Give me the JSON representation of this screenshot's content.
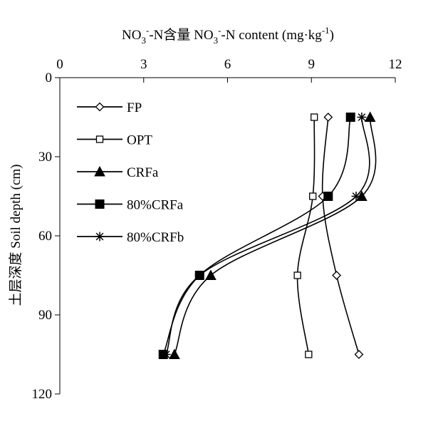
{
  "chart_data": {
    "type": "line",
    "title_parts": {
      "a": "NO",
      "b": "3",
      "c": "-",
      "d": "-N含量 NO",
      "e": "3",
      "f": "-",
      "g": "-N content (mg·kg",
      "h": "-1",
      "i": ")"
    },
    "ylabel": "土层深度 Soil depth (cm)",
    "x_axis": {
      "min": 0,
      "max": 12,
      "ticks": [
        0,
        3,
        6,
        9,
        12
      ],
      "tick_labels": [
        "0",
        "3",
        "6",
        "9",
        "12"
      ],
      "position": "top"
    },
    "y_axis": {
      "min": 0,
      "max": 120,
      "reversed": true,
      "ticks": [
        0,
        30,
        60,
        90,
        120
      ],
      "tick_labels": [
        "0",
        "30",
        "60",
        "90",
        "120"
      ]
    },
    "depths": [
      15,
      45,
      75,
      105
    ],
    "series": [
      {
        "name": "FP",
        "marker": "diamond-open",
        "values": [
          9.6,
          9.4,
          9.9,
          10.7
        ]
      },
      {
        "name": "OPT",
        "marker": "square-open",
        "values": [
          9.1,
          9.05,
          8.5,
          8.9
        ]
      },
      {
        "name": "CRFa",
        "marker": "triangle-filled",
        "values": [
          11.1,
          10.8,
          5.4,
          4.1
        ]
      },
      {
        "name": "80%CRFa",
        "marker": "square-filled",
        "values": [
          10.4,
          9.6,
          5.0,
          3.7
        ]
      },
      {
        "name": "80%CRFb",
        "marker": "star",
        "values": [
          10.8,
          10.6,
          5.0,
          3.8
        ]
      }
    ],
    "legend_position": "top-left",
    "grid": false
  }
}
